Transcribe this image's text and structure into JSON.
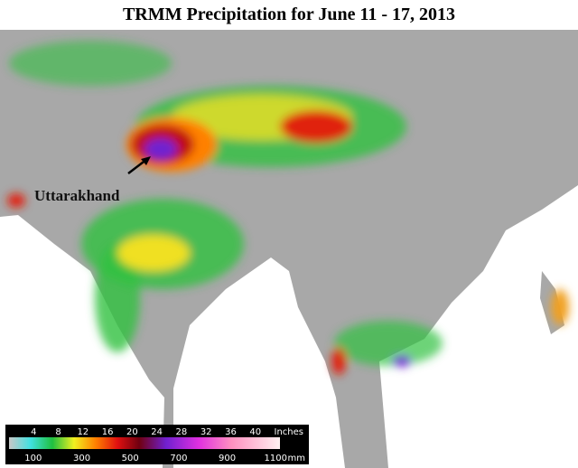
{
  "title": "TRMM Precipitation for June 11 - 17, 2013",
  "annotation": "Uttarakhand",
  "legend": {
    "inches_ticks": [
      4,
      8,
      12,
      16,
      20,
      24,
      28,
      32,
      36,
      40
    ],
    "inches_unit": "Inches",
    "mm_ticks": [
      100,
      300,
      500,
      700,
      900,
      1100
    ],
    "mm_unit": "mm"
  }
}
